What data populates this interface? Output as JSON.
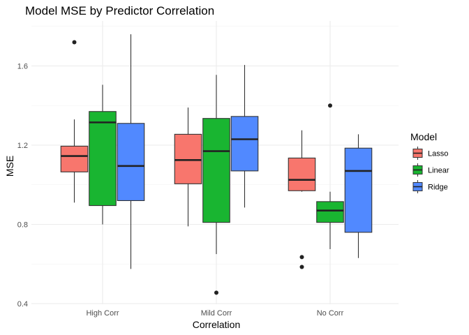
{
  "chart_data": {
    "type": "boxplot",
    "title": "Model MSE by Predictor Correlation",
    "xlabel": "Correlation",
    "ylabel": "MSE",
    "ylim": [
      0.4,
      1.8
    ],
    "yticks": [
      0.4,
      0.8,
      1.2,
      1.6
    ],
    "categories": [
      "High Corr",
      "Mild Corr",
      "No Corr"
    ],
    "legend": {
      "title": "Model",
      "position": "right"
    },
    "grid": true,
    "series": [
      {
        "name": "Lasso",
        "color": "#F8766D",
        "boxes": [
          {
            "whisker_low": 0.91,
            "q1": 1.065,
            "median": 1.145,
            "q3": 1.195,
            "whisker_high": 1.33,
            "outliers": [
              1.72
            ]
          },
          {
            "whisker_low": 0.79,
            "q1": 1.005,
            "median": 1.125,
            "q3": 1.255,
            "whisker_high": 1.39,
            "outliers": []
          },
          {
            "whisker_low": 0.965,
            "q1": 0.97,
            "median": 1.025,
            "q3": 1.135,
            "whisker_high": 1.275,
            "outliers": [
              0.635,
              0.585
            ]
          }
        ]
      },
      {
        "name": "Linear",
        "color": "#19B531",
        "boxes": [
          {
            "whisker_low": 0.8,
            "q1": 0.895,
            "median": 1.315,
            "q3": 1.37,
            "whisker_high": 1.505,
            "outliers": []
          },
          {
            "whisker_low": 0.65,
            "q1": 0.81,
            "median": 1.17,
            "q3": 1.335,
            "whisker_high": 1.555,
            "outliers": [
              0.455
            ]
          },
          {
            "whisker_low": 0.675,
            "q1": 0.81,
            "median": 0.87,
            "q3": 0.915,
            "whisker_high": 0.965,
            "outliers": [
              1.4
            ]
          }
        ]
      },
      {
        "name": "Ridge",
        "color": "#5189FF",
        "boxes": [
          {
            "whisker_low": 0.575,
            "q1": 0.92,
            "median": 1.095,
            "q3": 1.31,
            "whisker_high": 1.76,
            "outliers": []
          },
          {
            "whisker_low": 0.885,
            "q1": 1.07,
            "median": 1.23,
            "q3": 1.345,
            "whisker_high": 1.605,
            "outliers": []
          },
          {
            "whisker_low": 0.63,
            "q1": 0.76,
            "median": 1.07,
            "q3": 1.185,
            "whisker_high": 1.255,
            "outliers": []
          }
        ]
      }
    ]
  }
}
